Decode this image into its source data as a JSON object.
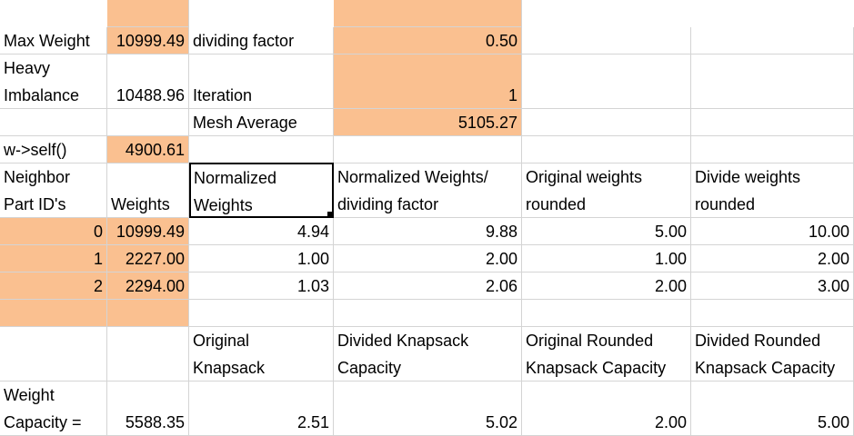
{
  "sheet": {
    "r1": {
      "a": "Max Weight",
      "b": "10999.49",
      "c": "dividing factor",
      "d": "0.50"
    },
    "r2": {
      "a1": "Heavy",
      "a2": "Imbalance",
      "b": "10488.96",
      "c": "Iteration",
      "d": "1"
    },
    "r3": {
      "c": "Mesh Average",
      "d": "5105.27"
    },
    "r4": {
      "a": "w->self()",
      "b": "4900.61"
    },
    "hdr": {
      "a1": "Neighbor",
      "a2": "Part ID's",
      "b": "Weights",
      "c1": "Normalized",
      "c2": "Weights",
      "d1": "Normalized Weights/",
      "d2": "dividing factor",
      "e1": "Original weights",
      "e2": "rounded",
      "f1": "Divide weights",
      "f2": "rounded"
    },
    "rows": [
      {
        "id": "0",
        "w": "10999.49",
        "nw": "4.94",
        "nd": "9.88",
        "or": "5.00",
        "dr": "10.00"
      },
      {
        "id": "1",
        "w": "2227.00",
        "nw": "1.00",
        "nd": "2.00",
        "or": "1.00",
        "dr": "2.00"
      },
      {
        "id": "2",
        "w": "2294.00",
        "nw": "1.03",
        "nd": "2.06",
        "or": "2.00",
        "dr": "3.00"
      }
    ],
    "kh": {
      "c1": "Original",
      "c2": "Knapsack",
      "d1": "Divided Knapsack",
      "d2": "Capacity",
      "e1": "Original Rounded",
      "e2": "Knapsack Capacity",
      "f1": "Divided Rounded",
      "f2": "Knapsack Capacity"
    },
    "cap": {
      "a1": "Weight",
      "a2": "Capacity =",
      "b": "5588.35",
      "c": "2.51",
      "d": "5.02",
      "e": "2.00",
      "f": "5.00"
    }
  },
  "colors": {
    "highlight": "#fac090",
    "gridline": "#d4d4d4"
  }
}
